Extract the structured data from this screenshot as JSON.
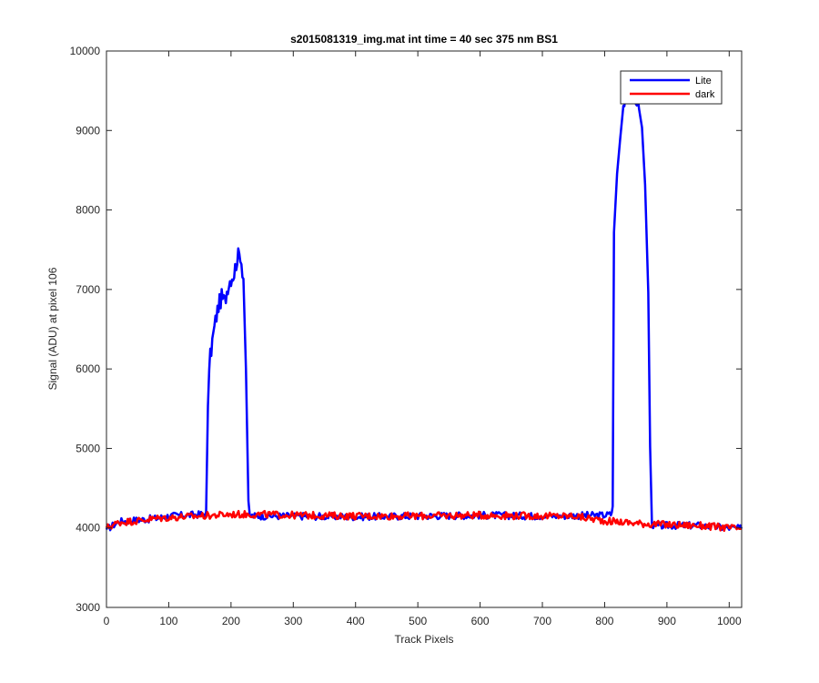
{
  "chart_data": {
    "type": "line",
    "title": "s2015081319_img.mat int time = 40 sec  375 nm BS1",
    "xlabel": "Track Pixels",
    "ylabel": "Signal (ADU) at pixel 106",
    "xlim": [
      0,
      1020
    ],
    "ylim": [
      3000,
      10000
    ],
    "xticks": [
      0,
      100,
      200,
      300,
      400,
      500,
      600,
      700,
      800,
      900,
      1000
    ],
    "yticks": [
      3000,
      4000,
      5000,
      6000,
      7000,
      8000,
      9000,
      10000
    ],
    "grid": false,
    "legend_position": "top-right",
    "series": [
      {
        "name": "Lite",
        "color": "#0000ff",
        "x": [
          0,
          20,
          50,
          80,
          100,
          130,
          150,
          160,
          163,
          165,
          170,
          175,
          180,
          185,
          190,
          195,
          200,
          205,
          210,
          215,
          220,
          224,
          228,
          230,
          250,
          300,
          400,
          500,
          600,
          700,
          800,
          810,
          813,
          815,
          820,
          825,
          830,
          835,
          840,
          845,
          850,
          855,
          860,
          865,
          870,
          873,
          876,
          880,
          900,
          950,
          1000,
          1020
        ],
        "y": [
          3980,
          4080,
          4100,
          4120,
          4150,
          4160,
          4170,
          4180,
          5500,
          6050,
          6350,
          6600,
          6800,
          6900,
          6850,
          7050,
          7150,
          7200,
          7400,
          7450,
          7150,
          6000,
          4300,
          4150,
          4150,
          4150,
          4140,
          4150,
          4160,
          4150,
          4160,
          4170,
          4250,
          7800,
          8400,
          8900,
          9300,
          9450,
          9500,
          9480,
          9400,
          9350,
          9000,
          8300,
          7000,
          5000,
          4050,
          4020,
          4030,
          4030,
          4000,
          3990
        ]
      },
      {
        "name": "dark",
        "color": "#ff0000",
        "x": [
          0,
          20,
          50,
          80,
          100,
          150,
          200,
          250,
          300,
          400,
          500,
          600,
          700,
          750,
          800,
          850,
          900,
          950,
          1000,
          1020
        ],
        "y": [
          4000,
          4070,
          4090,
          4120,
          4130,
          4150,
          4170,
          4170,
          4160,
          4150,
          4150,
          4160,
          4150,
          4150,
          4090,
          4060,
          4040,
          4030,
          4000,
          3990
        ]
      }
    ]
  }
}
